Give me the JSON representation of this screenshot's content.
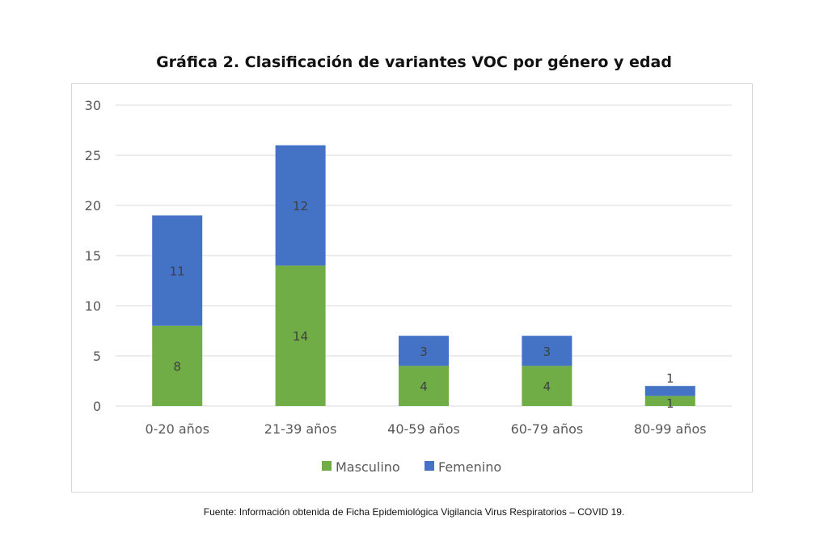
{
  "chart_data": {
    "type": "bar",
    "stacked": true,
    "title": "Gráfica 2. Clasificación de variantes VOC por género y edad",
    "xlabel": "",
    "ylabel": "",
    "ylim": [
      0,
      30
    ],
    "yticks": [
      0,
      5,
      10,
      15,
      20,
      25,
      30
    ],
    "categories": [
      "0-20 años",
      "21-39 años",
      "40-59 años",
      "60-79 años",
      "80-99 años"
    ],
    "series": [
      {
        "name": "Masculino",
        "color": "#70ad47",
        "values": [
          8,
          14,
          4,
          4,
          1
        ]
      },
      {
        "name": "Femenino",
        "color": "#4472c4",
        "values": [
          11,
          12,
          3,
          3,
          1
        ]
      }
    ],
    "grid": true,
    "legend": "bottom"
  },
  "source": "Fuente: Información obtenida de Ficha Epidemiológica Vigilancia Virus Respiratorios – COVID 19."
}
